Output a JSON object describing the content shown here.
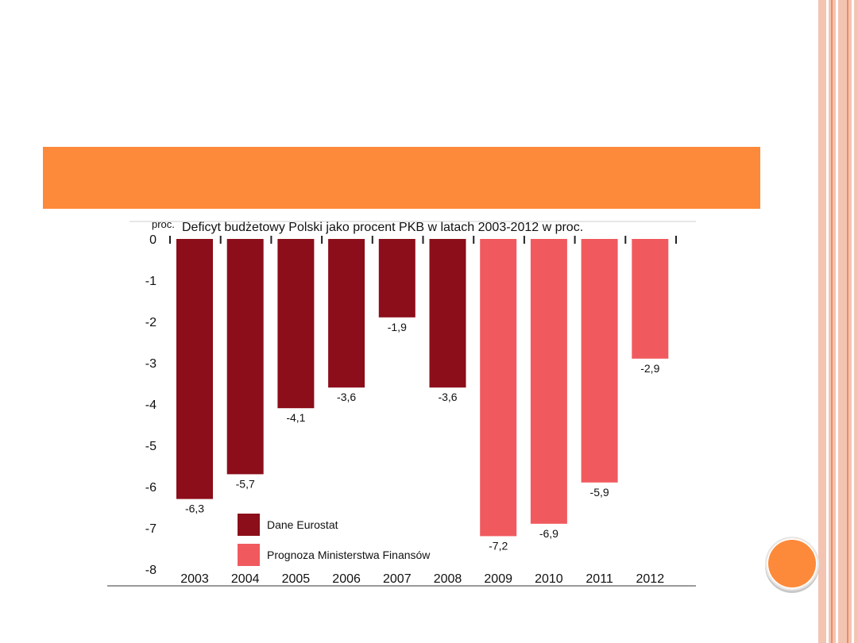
{
  "colors": {
    "eurostat": "#8b0e1a",
    "forecast": "#f05a5f",
    "accent": "#fd8a3a",
    "side_stripe": "#f3c4b2",
    "side_line": "#f08b60"
  },
  "chart_data": {
    "type": "bar",
    "title": "Deficyt budżetowy Polski jako procent PKB w latach 2003-2012 w proc.",
    "ylabel": "proc.",
    "xlabel": "",
    "ylim": [
      -8,
      0
    ],
    "yticks": [
      0,
      -1,
      -2,
      -3,
      -4,
      -5,
      -6,
      -7,
      -8
    ],
    "categories": [
      "2003",
      "2004",
      "2005",
      "2006",
      "2007",
      "2008",
      "2009",
      "2010",
      "2011",
      "2012"
    ],
    "values": [
      -6.3,
      -5.7,
      -4.1,
      -3.6,
      -1.9,
      -3.6,
      -7.2,
      -6.9,
      -5.9,
      -2.9
    ],
    "value_labels": [
      "-6,3",
      "-5,7",
      "-4,1",
      "-3,6",
      "-1,9",
      "-3,6",
      "-7,2",
      "-6,9",
      "-5,9",
      "-2,9"
    ],
    "series_assignment": [
      "Dane Eurostat",
      "Dane Eurostat",
      "Dane Eurostat",
      "Dane Eurostat",
      "Dane Eurostat",
      "Dane Eurostat",
      "Prognoza Ministerstwa Finansów",
      "Prognoza Ministerstwa Finansów",
      "Prognoza Ministerstwa Finansów",
      "Prognoza Ministerstwa Finansów"
    ],
    "legend": [
      {
        "name": "Dane Eurostat",
        "color": "#8b0e1a"
      },
      {
        "name": "Prognoza Ministerstwa Finansów",
        "color": "#f05a5f"
      }
    ],
    "legend_position": "bottom-left",
    "grid": false
  }
}
